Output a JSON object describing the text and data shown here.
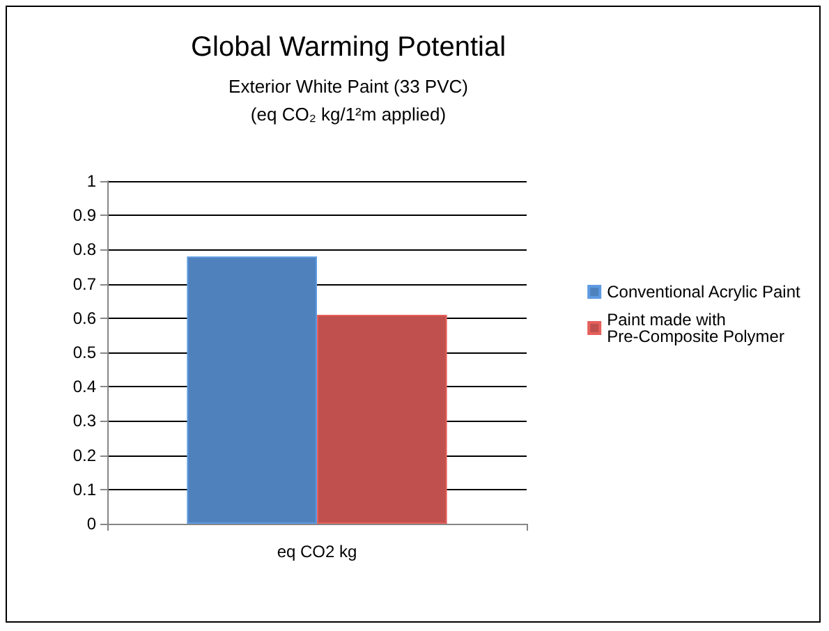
{
  "chart_data": {
    "type": "bar",
    "title": "Global Warming Potential",
    "subtitle": "Exterior White Paint (33 PVC)\n(eq CO₂ kg/1²m applied)",
    "categories": [
      "eq CO2 kg"
    ],
    "series": [
      {
        "name": "Conventional Acrylic Paint",
        "color": "#4f81bd",
        "values": [
          0.78
        ]
      },
      {
        "name": "Paint made with Pre-Composite Polymer",
        "color": "#c0504d",
        "values": [
          0.61
        ]
      }
    ],
    "ylim": [
      0,
      1
    ],
    "yticks": [
      0,
      0.1,
      0.2,
      0.3,
      0.4,
      0.5,
      0.6,
      0.7,
      0.8,
      0.9,
      1
    ],
    "grid": "y",
    "legend": "right"
  }
}
